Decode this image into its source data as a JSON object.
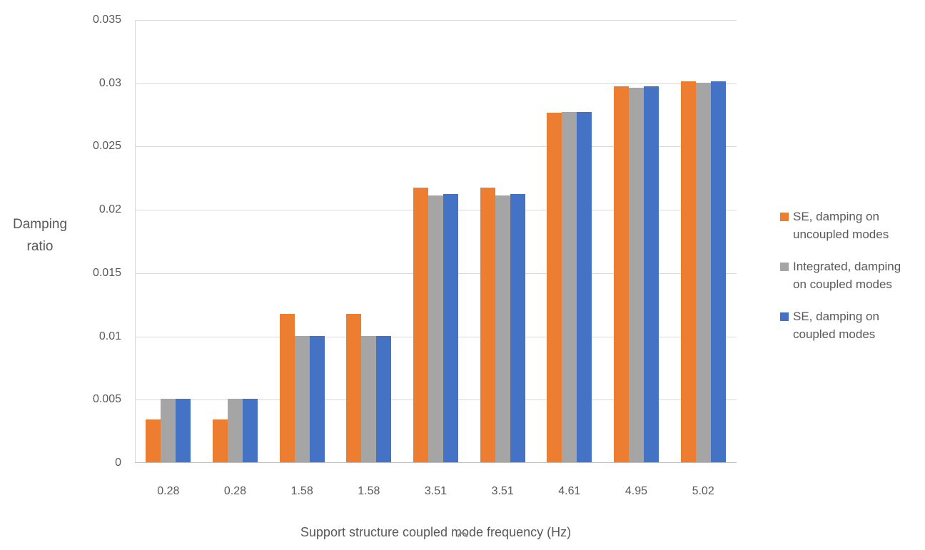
{
  "chart_data": {
    "type": "bar",
    "title": "",
    "xlabel": "Support structure coupled mode frequency (Hz)",
    "ylabel": "Damping ratio",
    "ylabel_lines": [
      "Damping",
      "ratio"
    ],
    "categories": [
      "0.28",
      "0.28",
      "1.58",
      "1.58",
      "3.51",
      "3.51",
      "4.61",
      "4.95",
      "5.02"
    ],
    "series": [
      {
        "name": "SE, damping on uncoupled modes",
        "color": "#ED7D31",
        "values": [
          0.0034,
          0.0034,
          0.0117,
          0.0117,
          0.0217,
          0.0217,
          0.0276,
          0.0297,
          0.0301
        ]
      },
      {
        "name": "Integrated, damping on coupled modes",
        "color": "#A5A5A5",
        "values": [
          0.005,
          0.005,
          0.01,
          0.01,
          0.0211,
          0.0211,
          0.0277,
          0.0296,
          0.03
        ]
      },
      {
        "name": "SE, damping on coupled modes",
        "color": "#4472C4",
        "values": [
          0.005,
          0.005,
          0.01,
          0.01,
          0.0212,
          0.0212,
          0.0277,
          0.0297,
          0.0301
        ]
      }
    ],
    "ylim": [
      0,
      0.035
    ],
    "yticks": [
      0,
      0.005,
      0.01,
      0.015,
      0.02,
      0.025,
      0.03,
      0.035
    ],
    "ytick_labels": [
      "0",
      "0.005",
      "0.01",
      "0.015",
      "0.02",
      "0.025",
      "0.03",
      "0.035"
    ],
    "grid": true,
    "legend_position": "right",
    "legend": [
      {
        "lines": [
          "SE, damping on",
          "uncoupled modes"
        ],
        "color": "#ED7D31"
      },
      {
        "lines": [
          "Integrated, damping",
          "on coupled modes"
        ],
        "color": "#A5A5A5"
      },
      {
        "lines": [
          "SE, damping on",
          "coupled modes"
        ],
        "color": "#4472C4"
      }
    ],
    "colors": {
      "text": "#595959",
      "gridline": "#D9D9D9",
      "axis_line": "#BFBFBF"
    }
  }
}
